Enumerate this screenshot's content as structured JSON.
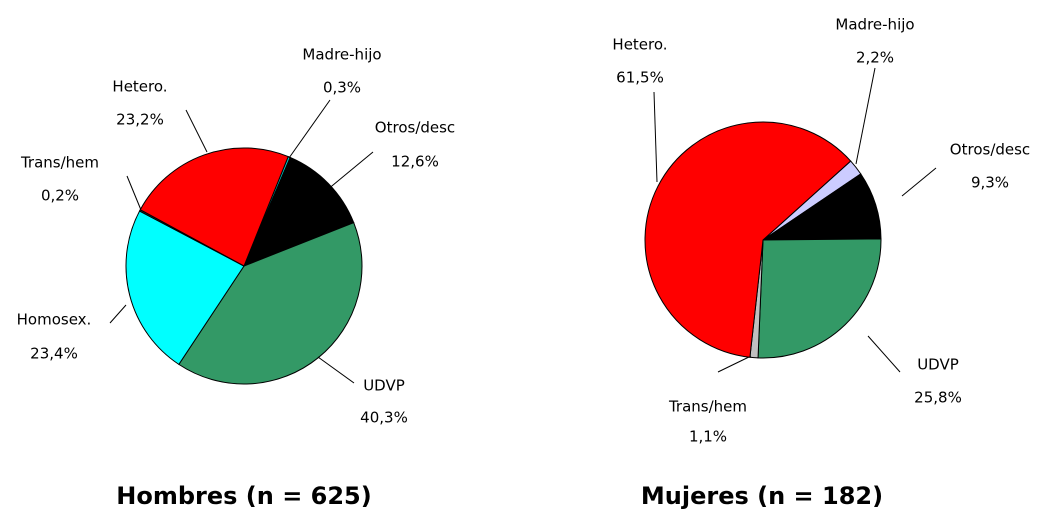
{
  "chart_data": [
    {
      "type": "pie",
      "title": "Hombres (n = 625)",
      "categories": [
        "Madre-hijo",
        "Otros/desc",
        "UDVP",
        "Homosex.",
        "Trans/hem",
        "Hetero."
      ],
      "values": [
        0.3,
        12.6,
        40.3,
        23.4,
        0.2,
        23.2
      ],
      "value_labels": [
        "0,3%",
        "12,6%",
        "40,3%",
        "23,4%",
        "0,2%",
        "23,2%"
      ],
      "colors": [
        "#00cccc",
        "#000000",
        "#339966",
        "#00ffff",
        "#333333",
        "#ff0000"
      ]
    },
    {
      "type": "pie",
      "title": "Mujeres (n = 182)",
      "categories": [
        "Madre-hijo",
        "Otros/desc",
        "UDVP",
        "Trans/hem",
        "Hetero."
      ],
      "values": [
        2.2,
        9.3,
        25.8,
        1.1,
        61.5
      ],
      "value_labels": [
        "2,2%",
        "9,3%",
        "25,8%",
        "1,1%",
        "61,5%"
      ],
      "colors": [
        "#ccccff",
        "#000000",
        "#339966",
        "#c0c0c0",
        "#ff0000"
      ]
    }
  ]
}
